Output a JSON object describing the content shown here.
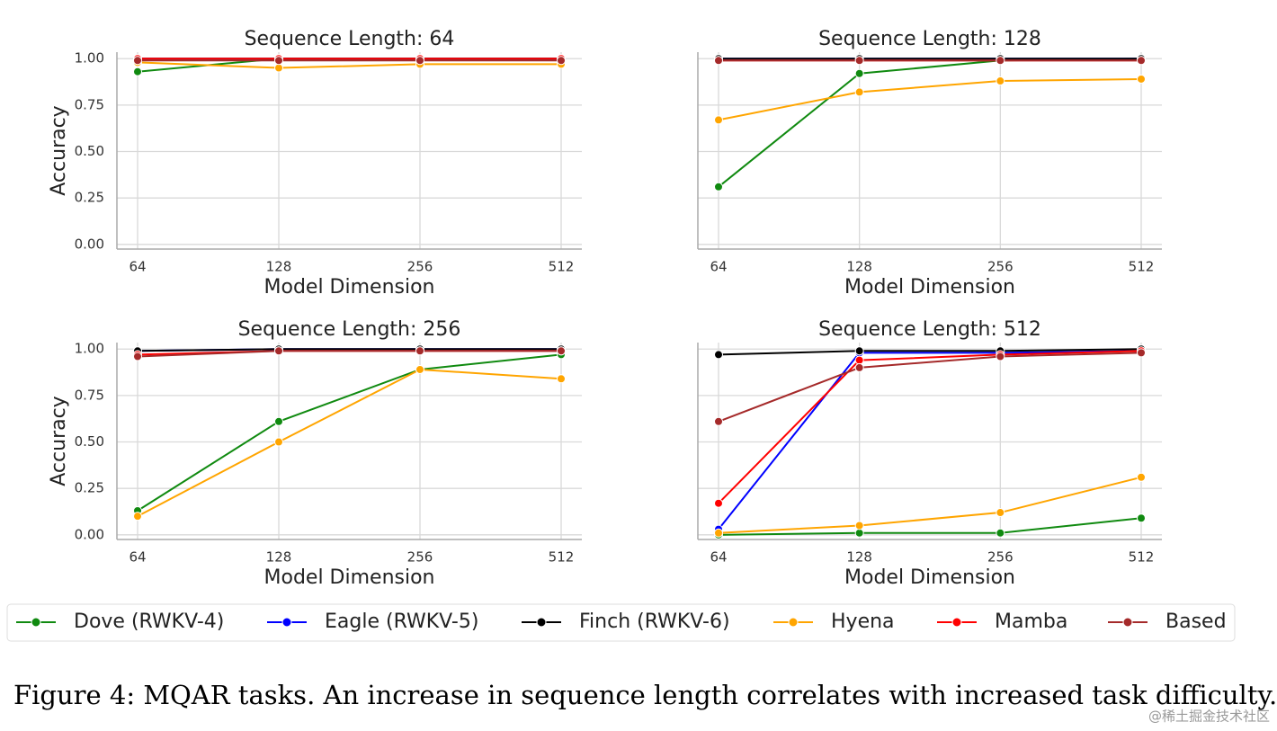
{
  "chart_data": [
    {
      "type": "line",
      "title": "Sequence Length: 64",
      "xlabel": "Model Dimension",
      "ylabel": "Accuracy",
      "categories": [
        "64",
        "128",
        "256",
        "512"
      ],
      "ylim": [
        -0.025,
        1.035
      ],
      "yticks": [
        {
          "value": 0,
          "label": "0.00"
        },
        {
          "value": 0.25,
          "label": "0.25"
        },
        {
          "value": 0.5,
          "label": "0.50"
        },
        {
          "value": 0.75,
          "label": "0.75"
        },
        {
          "value": 1,
          "label": "1.00"
        }
      ],
      "grid": true,
      "series": [
        {
          "name": "Dove (RWKV-4)",
          "color": "#108a10",
          "values": [
            0.93,
            1.0,
            1.0,
            1.0
          ]
        },
        {
          "name": "Eagle (RWKV-5)",
          "color": "#0000ff",
          "values": [
            1.0,
            1.0,
            1.0,
            1.0
          ]
        },
        {
          "name": "Finch (RWKV-6)",
          "color": "#000000",
          "values": [
            1.0,
            1.0,
            1.0,
            1.0
          ]
        },
        {
          "name": "Hyena",
          "color": "#ffa500",
          "values": [
            0.98,
            0.95,
            0.97,
            0.97
          ]
        },
        {
          "name": "Mamba",
          "color": "#ff0000",
          "values": [
            1.0,
            1.0,
            1.0,
            1.0
          ]
        },
        {
          "name": "Based",
          "color": "#a52a2a",
          "values": [
            0.99,
            0.99,
            0.99,
            0.99
          ]
        }
      ]
    },
    {
      "type": "line",
      "title": "Sequence Length: 128",
      "xlabel": "Model Dimension",
      "categories": [
        "64",
        "128",
        "256",
        "512"
      ],
      "ylim": [
        -0.025,
        1.035
      ],
      "yticks": [
        0,
        0.25,
        0.5,
        0.75,
        1
      ],
      "grid": true,
      "series": [
        {
          "name": "Dove (RWKV-4)",
          "color": "#108a10",
          "values": [
            0.31,
            0.92,
            0.99,
            1.0
          ]
        },
        {
          "name": "Eagle (RWKV-5)",
          "color": "#0000ff",
          "values": [
            1.0,
            1.0,
            1.0,
            1.0
          ]
        },
        {
          "name": "Finch (RWKV-6)",
          "color": "#000000",
          "values": [
            1.0,
            1.0,
            1.0,
            1.0
          ]
        },
        {
          "name": "Hyena",
          "color": "#ffa500",
          "values": [
            0.67,
            0.82,
            0.88,
            0.89
          ]
        },
        {
          "name": "Mamba",
          "color": "#ff0000",
          "values": [
            0.99,
            0.99,
            0.99,
            0.99
          ]
        },
        {
          "name": "Based",
          "color": "#a52a2a",
          "values": [
            0.99,
            0.99,
            0.99,
            0.99
          ]
        }
      ]
    },
    {
      "type": "line",
      "title": "Sequence Length: 256",
      "xlabel": "Model Dimension",
      "ylabel": "Accuracy",
      "categories": [
        "64",
        "128",
        "256",
        "512"
      ],
      "ylim": [
        -0.025,
        1.035
      ],
      "yticks": [
        {
          "value": 0,
          "label": "0.00"
        },
        {
          "value": 0.25,
          "label": "0.25"
        },
        {
          "value": 0.5,
          "label": "0.50"
        },
        {
          "value": 0.75,
          "label": "0.75"
        },
        {
          "value": 1,
          "label": "1.00"
        }
      ],
      "grid": true,
      "series": [
        {
          "name": "Dove (RWKV-4)",
          "color": "#108a10",
          "values": [
            0.13,
            0.61,
            0.89,
            0.97
          ]
        },
        {
          "name": "Eagle (RWKV-5)",
          "color": "#0000ff",
          "values": [
            0.99,
            1.0,
            1.0,
            1.0
          ]
        },
        {
          "name": "Finch (RWKV-6)",
          "color": "#000000",
          "values": [
            0.99,
            1.0,
            1.0,
            1.0
          ]
        },
        {
          "name": "Hyena",
          "color": "#ffa500",
          "values": [
            0.1,
            0.5,
            0.89,
            0.84
          ]
        },
        {
          "name": "Mamba",
          "color": "#ff0000",
          "values": [
            0.97,
            0.99,
            0.99,
            0.99
          ]
        },
        {
          "name": "Based",
          "color": "#a52a2a",
          "values": [
            0.96,
            0.99,
            0.99,
            0.99
          ]
        }
      ]
    },
    {
      "type": "line",
      "title": "Sequence Length: 512",
      "xlabel": "Model Dimension",
      "categories": [
        "64",
        "128",
        "256",
        "512"
      ],
      "ylim": [
        -0.025,
        1.035
      ],
      "yticks": [
        0,
        0.25,
        0.5,
        0.75,
        1
      ],
      "grid": true,
      "series": [
        {
          "name": "Dove (RWKV-4)",
          "color": "#108a10",
          "values": [
            0.0,
            0.01,
            0.01,
            0.09
          ]
        },
        {
          "name": "Eagle (RWKV-5)",
          "color": "#0000ff",
          "values": [
            0.03,
            0.98,
            0.98,
            0.99
          ]
        },
        {
          "name": "Finch (RWKV-6)",
          "color": "#000000",
          "values": [
            0.97,
            0.99,
            0.99,
            1.0
          ]
        },
        {
          "name": "Hyena",
          "color": "#ffa500",
          "values": [
            0.01,
            0.05,
            0.12,
            0.31
          ]
        },
        {
          "name": "Mamba",
          "color": "#ff0000",
          "values": [
            0.17,
            0.94,
            0.97,
            0.99
          ]
        },
        {
          "name": "Based",
          "color": "#a52a2a",
          "values": [
            0.61,
            0.9,
            0.96,
            0.98
          ]
        }
      ]
    }
  ],
  "caption": "Figure 4: MQAR tasks. An increase in sequence length correlates with increased task difficulty.",
  "watermark": "@稀土掘金技术社区"
}
